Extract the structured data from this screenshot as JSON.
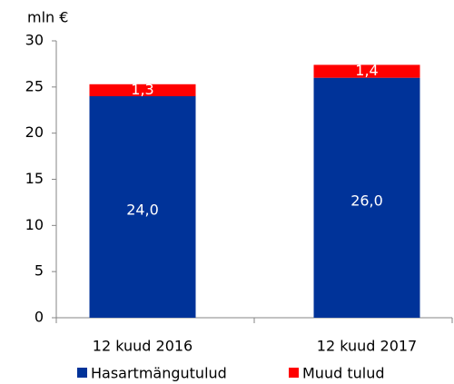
{
  "chart_data": {
    "type": "bar",
    "stacked": true,
    "y_axis_label": "mln €",
    "categories": [
      "12 kuud 2016",
      "12 kuud 2017"
    ],
    "series": [
      {
        "name": "Hasartmängutulud",
        "color": "#003399",
        "values": [
          24.0,
          26.0
        ],
        "value_labels": [
          "24,0",
          "26,0"
        ]
      },
      {
        "name": "Muud tulud",
        "color": "#ff0000",
        "values": [
          1.3,
          1.4
        ],
        "value_labels": [
          "1,3",
          "1,4"
        ]
      }
    ],
    "ylim": [
      0,
      30
    ],
    "yticks": [
      0,
      5,
      10,
      15,
      20,
      25,
      30
    ],
    "grid": false,
    "legend": "bottom"
  }
}
